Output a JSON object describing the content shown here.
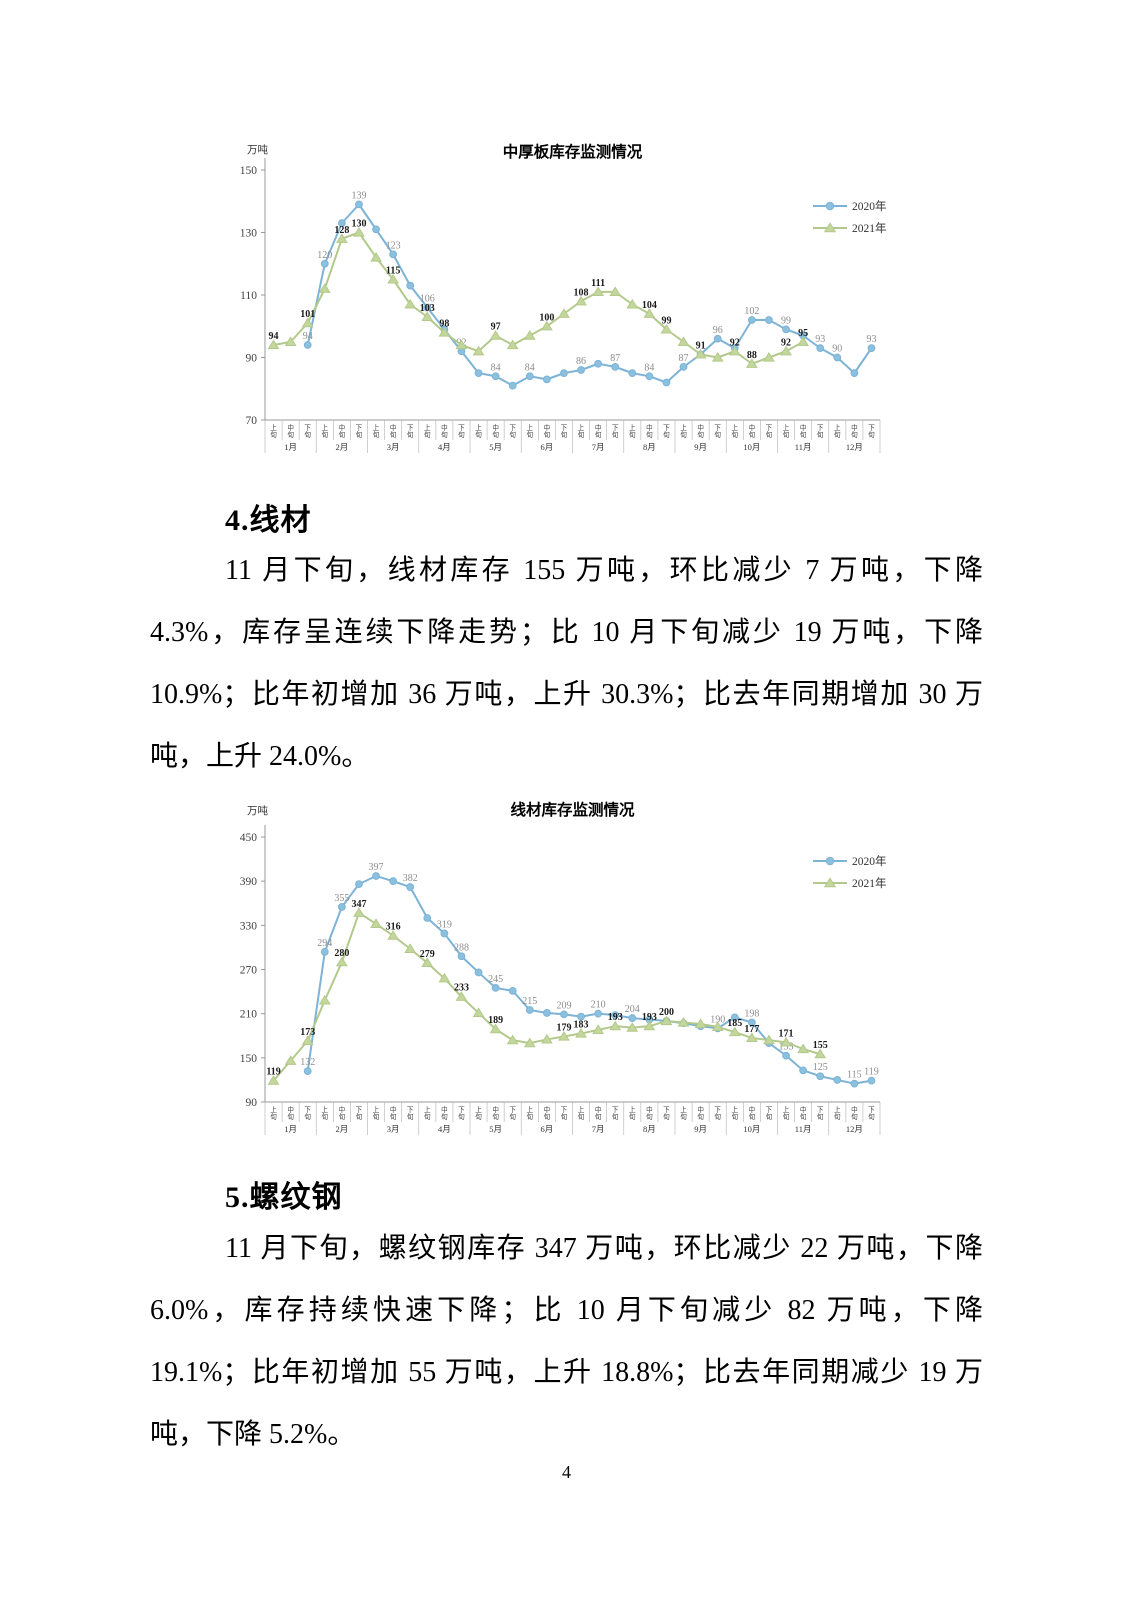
{
  "page": {
    "number": "4"
  },
  "sections": [
    {
      "heading": "4.线材",
      "paragraph": "11 月下旬，线材库存 155 万吨，环比减少 7 万吨，下降 4.3%，库存呈连续下降走势；比 10 月下旬减少 19 万吨，下降 10.9%；比年初增加 36 万吨，上升 30.3%；比去年同期增加 30 万吨，上升 24.0%。"
    },
    {
      "heading": "5.螺纹钢",
      "paragraph": "11 月下旬，螺纹钢库存 347 万吨，环比减少 22 万吨，下降 6.0%，库存持续快速下降；比 10 月下旬减少 82 万吨，下降 19.1%；比年初增加 55 万吨，上升 18.8%；比去年同期减少 19 万吨，下降 5.2%。"
    }
  ],
  "chart_data": [
    {
      "type": "line",
      "title": "中厚板库存监测情况",
      "unit_label": "万吨",
      "ylabel": "万吨",
      "ylim": [
        70,
        150
      ],
      "yticks": [
        70,
        90,
        110,
        130,
        150
      ],
      "grid": false,
      "legend_position": "right",
      "months": [
        "1月",
        "2月",
        "3月",
        "4月",
        "5月",
        "6月",
        "7月",
        "8月",
        "9月",
        "10月",
        "11月",
        "12月"
      ],
      "periods": [
        "上旬",
        "中旬",
        "下旬"
      ],
      "series": [
        {
          "name": "2020年",
          "marker": "circle",
          "color": "#7db3d6",
          "marker_fill": "#8bc0de",
          "label_color": "#8c8c8c",
          "label_bold": false,
          "values": [
            null,
            null,
            94,
            120,
            133,
            139,
            131,
            123,
            113,
            106,
            99,
            92,
            85,
            84,
            81,
            84,
            83,
            85,
            86,
            88,
            87,
            85,
            84,
            82,
            87,
            91,
            96,
            93,
            102,
            102,
            99,
            97,
            93,
            90,
            85,
            93
          ],
          "label_indices": [
            2,
            3,
            5,
            7,
            9,
            11,
            13,
            15,
            18,
            20,
            22,
            24,
            26,
            28,
            30,
            32,
            33,
            35
          ]
        },
        {
          "name": "2021年",
          "marker": "triangle",
          "color": "#b3c98b",
          "marker_fill": "#c3d69b",
          "label_color": "#1a1a1a",
          "label_bold": true,
          "values": [
            94,
            95,
            101,
            112,
            128,
            130,
            122,
            115,
            107,
            103,
            98,
            94,
            92,
            97,
            94,
            97,
            100,
            104,
            108,
            111,
            111,
            107,
            104,
            99,
            95,
            91,
            90,
            92,
            88,
            90,
            92,
            95,
            null,
            null,
            null,
            null
          ],
          "label_indices": [
            0,
            2,
            4,
            5,
            7,
            9,
            10,
            13,
            16,
            18,
            19,
            22,
            23,
            25,
            27,
            28,
            30,
            31
          ]
        }
      ]
    },
    {
      "type": "line",
      "title": "线材库存监测情况",
      "unit_label": "万吨",
      "ylabel": "万吨",
      "ylim": [
        90,
        450
      ],
      "yticks": [
        90,
        150,
        210,
        270,
        330,
        390,
        450
      ],
      "grid": false,
      "legend_position": "right",
      "months": [
        "1月",
        "2月",
        "3月",
        "4月",
        "5月",
        "6月",
        "7月",
        "8月",
        "9月",
        "10月",
        "11月",
        "12月"
      ],
      "periods": [
        "上旬",
        "中旬",
        "下旬"
      ],
      "series": [
        {
          "name": "2020年",
          "marker": "circle",
          "color": "#7db3d6",
          "marker_fill": "#8bc0de",
          "label_color": "#8c8c8c",
          "label_bold": false,
          "values": [
            null,
            null,
            132,
            294,
            355,
            386,
            397,
            390,
            382,
            340,
            319,
            288,
            266,
            245,
            241,
            215,
            211,
            209,
            206,
            210,
            208,
            204,
            202,
            200,
            197,
            193,
            190,
            205,
            198,
            170,
            153,
            133,
            125,
            120,
            115,
            119
          ],
          "label_indices": [
            2,
            3,
            4,
            6,
            8,
            10,
            11,
            13,
            15,
            17,
            19,
            21,
            26,
            28,
            30,
            32,
            34,
            35
          ]
        },
        {
          "name": "2021年",
          "marker": "triangle",
          "color": "#b3c98b",
          "marker_fill": "#c3d69b",
          "label_color": "#1a1a1a",
          "label_bold": true,
          "values": [
            119,
            146,
            173,
            228,
            280,
            347,
            332,
            316,
            298,
            279,
            258,
            233,
            211,
            189,
            174,
            170,
            175,
            179,
            183,
            188,
            193,
            191,
            193,
            200,
            198,
            196,
            192,
            185,
            177,
            174,
            171,
            162,
            155,
            null,
            null,
            null
          ],
          "label_indices": [
            0,
            2,
            4,
            5,
            7,
            9,
            11,
            13,
            17,
            18,
            20,
            22,
            23,
            27,
            28,
            30,
            32
          ]
        }
      ]
    }
  ]
}
